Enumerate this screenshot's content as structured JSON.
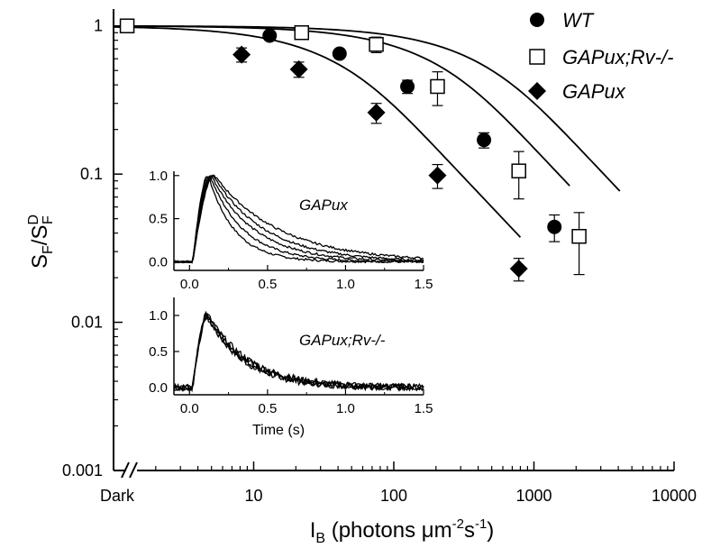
{
  "chart_data": [
    {
      "type": "scatter",
      "scale": {
        "x": "log",
        "y": "log"
      },
      "xlim": [
        1,
        10000
      ],
      "ylim": [
        0.001,
        1.3
      ],
      "xlabel": {
        "base": "I",
        "sub": "B",
        "text": " (photons μm",
        "sup1": "-2",
        "mid": "s",
        "sup2": "-1",
        "end": ")"
      },
      "ylabel": {
        "base1": "S",
        "sub1": "F",
        "slash": "/S",
        "sup": "D",
        "sub2": "F"
      },
      "x_break_label": "Dark",
      "x_ticks": [
        {
          "value": 10,
          "label": "10"
        },
        {
          "value": 100,
          "label": "100"
        },
        {
          "value": 1000,
          "label": "1000"
        },
        {
          "value": 10000,
          "label": "10000"
        }
      ],
      "y_ticks": [
        {
          "value": 0.001,
          "label": "0.001"
        },
        {
          "value": 0.01,
          "label": "0.01"
        },
        {
          "value": 0.1,
          "label": "0.1"
        },
        {
          "value": 1,
          "label": "1"
        }
      ],
      "legend_position": "top-right",
      "series": [
        {
          "name": "WT",
          "marker": "filled-circle",
          "points": [
            {
              "x": 1.25,
              "y": 1.0,
              "err": 0.05
            },
            {
              "x": 13,
              "y": 0.86,
              "err": 0.03
            },
            {
              "x": 41,
              "y": 0.65,
              "err": 0.03
            },
            {
              "x": 125,
              "y": 0.39,
              "err": 0.04
            },
            {
              "x": 440,
              "y": 0.17,
              "err": 0.02
            },
            {
              "x": 1400,
              "y": 0.044,
              "err": 0.009
            }
          ],
          "fit_curve": {
            "x_start": 1,
            "x_end": 1800,
            "half_saturation": 150
          }
        },
        {
          "name": "GAPux;Rv-/-",
          "marker": "open-square",
          "points": [
            {
              "x": 1.25,
              "y": 1.0,
              "err": 0.07
            },
            {
              "x": 22,
              "y": 0.9,
              "err": 0.05
            },
            {
              "x": 75,
              "y": 0.75,
              "err": 0.09
            },
            {
              "x": 205,
              "y": 0.39,
              "err": 0.1
            },
            {
              "x": 780,
              "y": 0.105,
              "err": 0.037
            },
            {
              "x": 2100,
              "y": 0.038,
              "err": 0.017
            }
          ],
          "fit_curve": {
            "x_start": 1,
            "x_end": 4100,
            "half_saturation": 315
          }
        },
        {
          "name": "GAPux",
          "marker": "filled-diamond",
          "points": [
            {
              "x": 8.2,
              "y": 0.64,
              "err": 0.07
            },
            {
              "x": 21,
              "y": 0.51,
              "err": 0.06
            },
            {
              "x": 75,
              "y": 0.26,
              "err": 0.04
            },
            {
              "x": 205,
              "y": 0.098,
              "err": 0.018
            },
            {
              "x": 780,
              "y": 0.023,
              "err": 0.004
            }
          ],
          "fit_curve": {
            "x_start": 1,
            "x_end": 800,
            "half_saturation": 30
          }
        }
      ]
    },
    {
      "type": "line",
      "label": "GAPux",
      "xlim": [
        -0.1,
        1.5
      ],
      "ylim": [
        -0.1,
        1.05
      ],
      "x_ticks": [
        0.0,
        0.5,
        1.0,
        1.5
      ],
      "x_tick_labels": [
        "0.0",
        "0.5",
        "1.0",
        "1.5"
      ],
      "y_ticks": [
        0.0,
        0.5,
        1.0
      ],
      "y_tick_labels": [
        "0.0",
        "0.5",
        "1.0"
      ],
      "series": [
        {
          "peak_time": 0.12,
          "decay_tau": 0.17
        },
        {
          "peak_time": 0.13,
          "decay_tau": 0.22
        },
        {
          "peak_time": 0.14,
          "decay_tau": 0.28
        },
        {
          "peak_time": 0.15,
          "decay_tau": 0.34
        },
        {
          "peak_time": 0.16,
          "decay_tau": 0.42
        }
      ]
    },
    {
      "type": "line",
      "label": "GAPux;Rv-/-",
      "xlabel": "Time (s)",
      "xlim": [
        -0.1,
        1.5
      ],
      "ylim": [
        -0.1,
        1.25
      ],
      "x_ticks": [
        0.0,
        0.5,
        1.0,
        1.5
      ],
      "x_tick_labels": [
        "0.0",
        "0.5",
        "1.0",
        "1.5"
      ],
      "y_ticks": [
        0.0,
        0.5,
        1.0
      ],
      "y_tick_labels": [
        "0.0",
        "0.5",
        "1.0"
      ],
      "series": [
        {
          "peak_time": 0.11,
          "decay_tau": 0.24
        },
        {
          "peak_time": 0.11,
          "decay_tau": 0.25
        },
        {
          "peak_time": 0.12,
          "decay_tau": 0.26
        },
        {
          "peak_time": 0.12,
          "decay_tau": 0.27
        }
      ]
    }
  ]
}
